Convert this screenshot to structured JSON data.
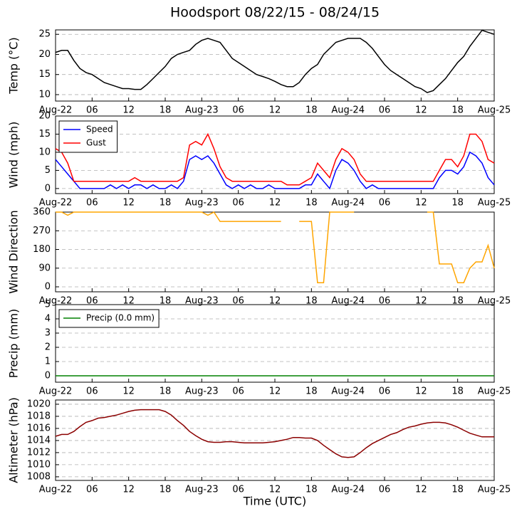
{
  "chart_data": [
    {
      "type": "line",
      "title": "Hoodsport 08/22/15 - 08/24/15",
      "y_label": "Temp (°C)",
      "grid": true,
      "xlim": [
        0,
        72
      ],
      "ylim": [
        8.4,
        26.1
      ],
      "yticks": [
        10,
        15,
        20,
        25
      ],
      "xticks": [
        {
          "value": 0,
          "label": "Aug-22"
        },
        {
          "value": 6,
          "label": "06"
        },
        12,
        18,
        {
          "value": 24,
          "label": "Aug-23"
        },
        {
          "value": 30,
          "label": "06"
        },
        {
          "value": 36,
          "label": "12"
        },
        {
          "value": 42,
          "label": "18"
        },
        {
          "value": 48,
          "label": "Aug-24"
        },
        {
          "value": 54,
          "label": "06"
        },
        {
          "value": 60,
          "label": "12"
        },
        {
          "value": 66,
          "label": "18"
        },
        {
          "value": 72,
          "label": "Aug-25"
        }
      ],
      "x": [
        0,
        1,
        2,
        3,
        4,
        5,
        6,
        7,
        8,
        9,
        10,
        11,
        12,
        13,
        14,
        15,
        16,
        17,
        18,
        19,
        20,
        21,
        22,
        23,
        24,
        25,
        26,
        27,
        28,
        29,
        30,
        31,
        32,
        33,
        34,
        35,
        36,
        37,
        38,
        39,
        40,
        41,
        42,
        43,
        44,
        45,
        46,
        47,
        48,
        49,
        50,
        51,
        52,
        53,
        54,
        55,
        56,
        57,
        58,
        59,
        60,
        61,
        62,
        63,
        64,
        65,
        66,
        67,
        68,
        69,
        70,
        71,
        72
      ],
      "series": [
        {
          "color": "#000000",
          "values": [
            20.5,
            21,
            21,
            18.5,
            16.5,
            15.5,
            15,
            14,
            13,
            12.5,
            12,
            11.5,
            11.5,
            11.3,
            11.3,
            12.5,
            14,
            15.5,
            17,
            19,
            20,
            20.5,
            21,
            22.5,
            23.5,
            24,
            23.5,
            23,
            21,
            19,
            18,
            17,
            16,
            15,
            14.5,
            14,
            13.3,
            12.5,
            12,
            12,
            13,
            15,
            16.5,
            17.5,
            20,
            21.5,
            23,
            23.5,
            24,
            24,
            24,
            23,
            21.5,
            19.5,
            17.5,
            16,
            15,
            14,
            13,
            12,
            11.5,
            10.5,
            11,
            12.5,
            14,
            16,
            18,
            19.5,
            22,
            24,
            26,
            25.5,
            25
          ]
        }
      ]
    },
    {
      "type": "line",
      "y_label": "Wind (mph)",
      "grid": true,
      "legend": "upper left",
      "xlim": [
        0,
        72
      ],
      "ylim": [
        -1.4,
        20
      ],
      "yticks": [
        0,
        5,
        10,
        15,
        20
      ],
      "xticks": [
        {
          "value": 0,
          "label": "Aug-22"
        },
        {
          "value": 6,
          "label": "06"
        },
        12,
        18,
        {
          "value": 24,
          "label": "Aug-23"
        },
        {
          "value": 30,
          "label": "06"
        },
        {
          "value": 36,
          "label": "12"
        },
        {
          "value": 42,
          "label": "18"
        },
        {
          "value": 48,
          "label": "Aug-24"
        },
        {
          "value": 54,
          "label": "06"
        },
        {
          "value": 60,
          "label": "12"
        },
        {
          "value": 66,
          "label": "18"
        },
        {
          "value": 72,
          "label": "Aug-25"
        }
      ],
      "x": [
        0,
        1,
        2,
        3,
        4,
        5,
        6,
        7,
        8,
        9,
        10,
        11,
        12,
        13,
        14,
        15,
        16,
        17,
        18,
        19,
        20,
        21,
        22,
        23,
        24,
        25,
        26,
        27,
        28,
        29,
        30,
        31,
        32,
        33,
        34,
        35,
        36,
        37,
        38,
        39,
        40,
        41,
        42,
        43,
        44,
        45,
        46,
        47,
        48,
        49,
        50,
        51,
        52,
        53,
        54,
        55,
        56,
        57,
        58,
        59,
        60,
        61,
        62,
        63,
        64,
        65,
        66,
        67,
        68,
        69,
        70,
        71,
        72
      ],
      "series": [
        {
          "name": "Speed",
          "color": "#0000ff",
          "values": [
            8,
            6,
            4,
            2,
            0,
            0,
            0,
            0,
            0,
            1,
            0,
            1,
            0,
            1,
            1,
            0,
            1,
            0,
            0,
            1,
            0,
            2,
            8,
            9,
            8,
            9,
            7,
            4,
            1,
            0,
            1,
            0,
            1,
            0,
            0,
            1,
            0,
            0,
            0,
            0,
            0,
            1,
            1,
            4,
            2,
            0,
            5,
            8,
            7,
            5,
            2,
            0,
            1,
            0,
            0,
            0,
            0,
            0,
            0,
            0,
            0,
            0,
            0,
            3,
            5,
            5,
            4,
            6,
            10,
            9,
            7,
            3,
            1
          ]
        },
        {
          "name": "Gust",
          "color": "#ff0000",
          "values": [
            11,
            10,
            7,
            2,
            2,
            2,
            2,
            2,
            2,
            2,
            2,
            2,
            2,
            3,
            2,
            2,
            2,
            2,
            2,
            2,
            2,
            3,
            12,
            13,
            12,
            15,
            11,
            6,
            3,
            2,
            2,
            2,
            2,
            2,
            2,
            2,
            2,
            2,
            1,
            1,
            1,
            2,
            3,
            7,
            5,
            3,
            8,
            11,
            10,
            8,
            4,
            2,
            2,
            2,
            2,
            2,
            2,
            2,
            2,
            2,
            2,
            2,
            2,
            5,
            8,
            8,
            6,
            9,
            15,
            15,
            13,
            8,
            7
          ]
        }
      ]
    },
    {
      "type": "line",
      "y_label": "Wind Direction",
      "grid": true,
      "xlim": [
        0,
        72
      ],
      "ylim": [
        -24,
        360
      ],
      "yticks": [
        0,
        90,
        180,
        270,
        360
      ],
      "xticks": [
        {
          "value": 0,
          "label": "Aug-22"
        },
        {
          "value": 6,
          "label": "06"
        },
        12,
        18,
        {
          "value": 24,
          "label": "Aug-23"
        },
        {
          "value": 30,
          "label": "06"
        },
        {
          "value": 36,
          "label": "12"
        },
        {
          "value": 42,
          "label": "18"
        },
        {
          "value": 48,
          "label": "Aug-24"
        },
        {
          "value": 54,
          "label": "06"
        },
        {
          "value": 60,
          "label": "12"
        },
        {
          "value": 66,
          "label": "18"
        },
        {
          "value": 72,
          "label": "Aug-25"
        }
      ],
      "x": [
        0,
        1,
        2,
        3,
        4,
        5,
        6,
        7,
        8,
        9,
        10,
        11,
        12,
        13,
        14,
        15,
        16,
        17,
        18,
        19,
        20,
        21,
        22,
        23,
        24,
        25,
        26,
        27,
        28,
        29,
        30,
        31,
        32,
        33,
        34,
        35,
        36,
        37,
        38,
        39,
        40,
        41,
        42,
        43,
        44,
        45,
        46,
        47,
        48,
        49,
        50,
        51,
        52,
        53,
        54,
        55,
        56,
        57,
        58,
        59,
        60,
        61,
        62,
        63,
        64,
        65,
        66,
        67,
        68,
        69,
        70,
        71,
        72
      ],
      "series": [
        {
          "color": "#ffa500",
          "values": [
            360,
            360,
            345,
            360,
            360,
            360,
            360,
            360,
            360,
            360,
            360,
            360,
            360,
            360,
            360,
            360,
            360,
            360,
            360,
            360,
            360,
            360,
            360,
            360,
            360,
            345,
            360,
            315,
            315,
            315,
            315,
            315,
            315,
            315,
            315,
            315,
            315,
            315,
            null,
            null,
            315,
            315,
            315,
            20,
            20,
            360,
            360,
            360,
            360,
            360,
            null,
            null,
            360,
            null,
            360,
            null,
            360,
            null,
            null,
            360,
            null,
            360,
            360,
            110,
            110,
            110,
            20,
            20,
            90,
            120,
            120,
            200,
            90
          ]
        }
      ]
    },
    {
      "type": "line",
      "y_label": "Precip (mm)",
      "grid": true,
      "legend": "upper left",
      "xlim": [
        0,
        72
      ],
      "ylim": [
        -0.45,
        5
      ],
      "yticks": [
        0,
        1,
        2,
        3,
        4,
        5
      ],
      "xticks": [
        {
          "value": 0,
          "label": "Aug-22"
        },
        {
          "value": 6,
          "label": "06"
        },
        12,
        18,
        {
          "value": 24,
          "label": "Aug-23"
        },
        {
          "value": 30,
          "label": "06"
        },
        {
          "value": 36,
          "label": "12"
        },
        {
          "value": 42,
          "label": "18"
        },
        {
          "value": 48,
          "label": "Aug-24"
        },
        {
          "value": 54,
          "label": "06"
        },
        {
          "value": 60,
          "label": "12"
        },
        {
          "value": 66,
          "label": "18"
        },
        {
          "value": 72,
          "label": "Aug-25"
        }
      ],
      "x": [
        0,
        72
      ],
      "series": [
        {
          "name": "Precip (0.0 mm)",
          "color": "#008000",
          "values": [
            0,
            0
          ]
        }
      ]
    },
    {
      "type": "line",
      "y_label": "Altimeter (hPa)",
      "x_label": "Time (UTC)",
      "grid": true,
      "xlim": [
        0,
        72
      ],
      "ylim": [
        1007.4,
        1020.7
      ],
      "yticks": [
        1008,
        1010,
        1012,
        1014,
        1016,
        1018,
        1020
      ],
      "xticks": [
        {
          "value": 0,
          "label": "Aug-22"
        },
        {
          "value": 6,
          "label": "06"
        },
        12,
        18,
        {
          "value": 24,
          "label": "Aug-23"
        },
        {
          "value": 30,
          "label": "06"
        },
        {
          "value": 36,
          "label": "12"
        },
        {
          "value": 42,
          "label": "18"
        },
        {
          "value": 48,
          "label": "Aug-24"
        },
        {
          "value": 54,
          "label": "06"
        },
        {
          "value": 60,
          "label": "12"
        },
        {
          "value": 66,
          "label": "18"
        },
        {
          "value": 72,
          "label": "Aug-25"
        }
      ],
      "x": [
        0,
        1,
        2,
        3,
        4,
        5,
        6,
        7,
        8,
        9,
        10,
        11,
        12,
        13,
        14,
        15,
        16,
        17,
        18,
        19,
        20,
        21,
        22,
        23,
        24,
        25,
        26,
        27,
        28,
        29,
        30,
        31,
        32,
        33,
        34,
        35,
        36,
        37,
        38,
        39,
        40,
        41,
        42,
        43,
        44,
        45,
        46,
        47,
        48,
        49,
        50,
        51,
        52,
        53,
        54,
        55,
        56,
        57,
        58,
        59,
        60,
        61,
        62,
        63,
        64,
        65,
        66,
        67,
        68,
        69,
        70,
        71,
        72
      ],
      "series": [
        {
          "color": "#8b0000",
          "values": [
            1014.7,
            1015,
            1015,
            1015.5,
            1016.3,
            1017,
            1017.3,
            1017.7,
            1017.8,
            1018,
            1018.2,
            1018.5,
            1018.8,
            1019,
            1019.1,
            1019.1,
            1019.1,
            1019.1,
            1018.8,
            1018.2,
            1017.3,
            1016.5,
            1015.5,
            1014.8,
            1014.2,
            1013.8,
            1013.7,
            1013.7,
            1013.8,
            1013.8,
            1013.7,
            1013.6,
            1013.6,
            1013.6,
            1013.6,
            1013.7,
            1013.8,
            1014,
            1014.2,
            1014.5,
            1014.5,
            1014.4,
            1014.4,
            1014,
            1013.2,
            1012.5,
            1011.8,
            1011.3,
            1011.2,
            1011.3,
            1012,
            1012.8,
            1013.5,
            1014,
            1014.5,
            1015,
            1015.3,
            1015.8,
            1016.2,
            1016.4,
            1016.7,
            1016.9,
            1017,
            1017,
            1016.9,
            1016.6,
            1016.2,
            1015.7,
            1015.2,
            1014.9,
            1014.6,
            1014.6,
            1014.6
          ]
        }
      ]
    }
  ]
}
